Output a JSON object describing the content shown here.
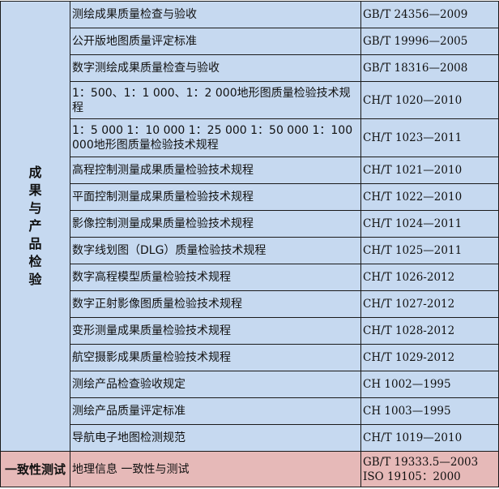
{
  "groups": [
    {
      "category": "成果与产品检验",
      "color": "#c6d9f0",
      "rows": [
        {
          "name": "测绘成果质量检查与验收",
          "code": "GB/T 24356—2009"
        },
        {
          "name": "公开版地图质量评定标准",
          "code": "GB/T 19996—2005"
        },
        {
          "name": "数字测绘成果质量检查与验收",
          "code": "GB/T 18316—2008"
        },
        {
          "name": "1：500、1：1 000、1：2 000地形图质量检验技术规程",
          "code": "CH/T 1020—2010"
        },
        {
          "name": "1：5 000 1：10 000 1：25 000 1：50 000 1：100 000地形图质量检验技术规程",
          "code": "CH/T 1023—2011"
        },
        {
          "name": "高程控制测量成果质量检验技术规程",
          "code": "CH/T 1021—2010"
        },
        {
          "name": "平面控制测量成果质量检验技术规程",
          "code": "CH/T 1022—2010"
        },
        {
          "name": "影像控制测量成果质量检验技术规程",
          "code": "CH/T 1024—2011"
        },
        {
          "name": "数字线划图（DLG）质量检验技术规程",
          "code": "CH/T 1025—2011"
        },
        {
          "name": "数字高程模型质量检验技术规程",
          "code": "CH/T 1026-2012"
        },
        {
          "name": "数字正射影像图质量检验技术规程",
          "code": "CH/T 1027-2012"
        },
        {
          "name": "变形测量成果质量检验技术规程",
          "code": "CH/T 1028-2012"
        },
        {
          "name": "航空摄影成果质量检验技术规程",
          "code": "CH/T 1029-2012"
        },
        {
          "name": "测绘产品检查验收规定",
          "code": "CH 1002—1995"
        },
        {
          "name": "测绘产品质量评定标准",
          "code": "CH 1003—1995"
        },
        {
          "name": "导航电子地图检测规范",
          "code": "CH/T 1019—2010"
        }
      ]
    },
    {
      "category": "一致性测试",
      "color": "#e6b9b8",
      "rows": [
        {
          "name": "地理信息 一致性与测试",
          "code": "GB/T 19333.5—2003",
          "code2": "ISO 19105：2000"
        }
      ]
    }
  ]
}
